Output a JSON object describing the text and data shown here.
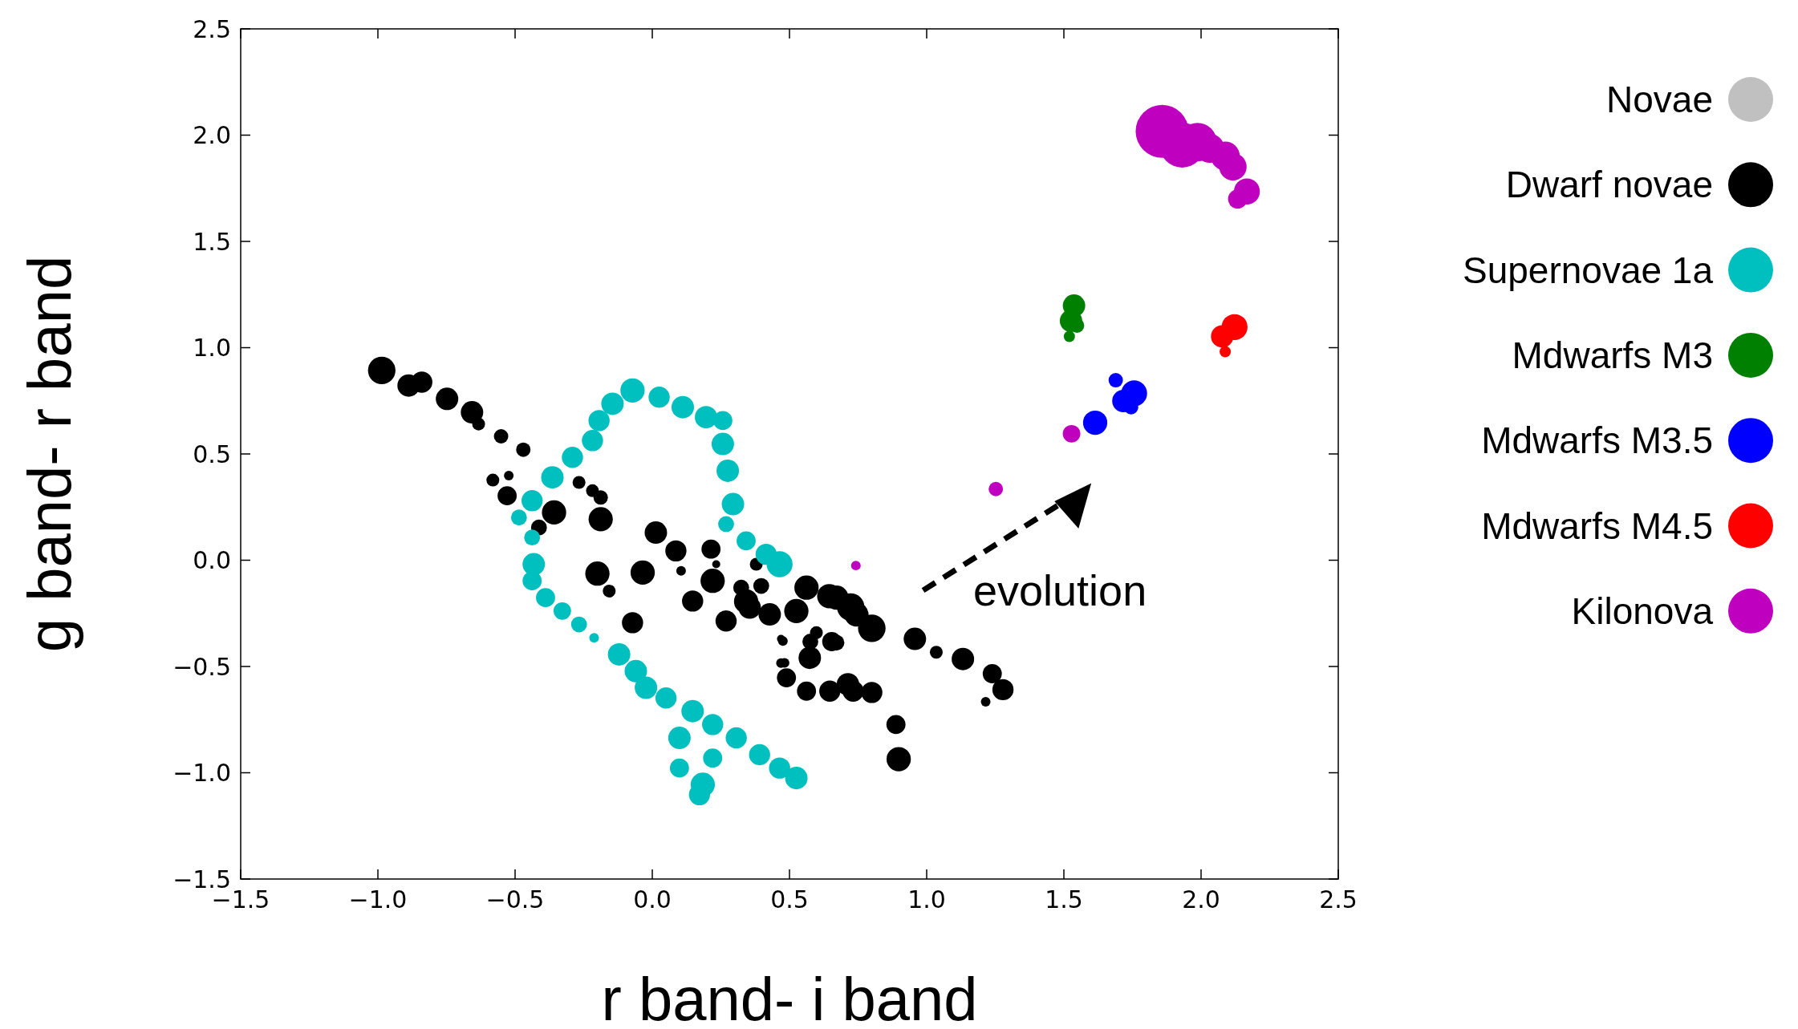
{
  "chart_data": {
    "type": "bubble",
    "xlabel": "r band- i band",
    "ylabel": "g band- r band",
    "xlim": [
      -1.5,
      2.5
    ],
    "ylim": [
      -1.5,
      2.5
    ],
    "xticks": [
      {
        "value": -1.5,
        "label": "−1.5"
      },
      {
        "value": -1.0,
        "label": "−1.0"
      },
      {
        "value": -0.5,
        "label": "−0.5"
      },
      {
        "value": 0,
        "label": "0.0"
      },
      {
        "value": 0.5,
        "label": "0.5"
      },
      {
        "value": 1.0,
        "label": "1.0"
      },
      {
        "value": 1.5,
        "label": "1.5"
      },
      {
        "value": 2.0,
        "label": "2.0"
      },
      {
        "value": 2.5,
        "label": "2.5"
      }
    ],
    "yticks": [
      {
        "value": -1.5,
        "label": "−1.5"
      },
      {
        "value": -1.0,
        "label": "−1.0"
      },
      {
        "value": -0.5,
        "label": "−0.5"
      },
      {
        "value": 0,
        "label": "0.0"
      },
      {
        "value": 0.5,
        "label": "0.5"
      },
      {
        "value": 1.0,
        "label": "1.0"
      },
      {
        "value": 1.5,
        "label": "1.5"
      },
      {
        "value": 2.0,
        "label": "2.0"
      },
      {
        "value": 2.5,
        "label": "2.5"
      }
    ],
    "grid": false,
    "legend": "right",
    "marker": "circle",
    "annotations": [
      "evolution"
    ],
    "series": [
      {
        "name": "Novae",
        "color": "#c0c0c0"
      },
      {
        "name": "Dwarf novae",
        "color": "#000000",
        "x": [
          -0.986,
          -0.888,
          -0.84,
          -0.748,
          -0.657,
          -0.633,
          -0.551,
          -0.47,
          -0.581,
          -0.523,
          -0.529,
          -0.413,
          -0.358,
          -0.267,
          -0.218,
          -0.188,
          -0.188,
          0.013,
          0.086,
          0.214,
          0.233,
          0.105,
          -0.2,
          -0.035,
          -0.157,
          -0.072,
          0.22,
          0.147,
          0.269,
          0.324,
          0.397,
          0.379,
          0.355,
          0.428,
          0.525,
          0.562,
          0.671,
          0.744,
          0.476,
          0.598,
          0.671,
          0.574,
          0.482,
          0.489,
          0.562,
          0.647,
          0.732,
          0.8,
          0.957,
          1.035,
          1.132,
          1.239,
          1.278,
          1.215,
          0.8,
          0.888,
          0.898,
          0.654,
          0.713,
          0.576,
          0.469,
          0.469,
          0.723,
          0.645,
          0.342
        ],
        "values": [
          0.893,
          0.822,
          0.838,
          0.759,
          0.696,
          0.641,
          0.583,
          0.52,
          0.377,
          0.398,
          0.303,
          0.154,
          0.225,
          0.366,
          0.327,
          0.295,
          0.193,
          0.13,
          0.044,
          0.052,
          -0.019,
          -0.05,
          -0.063,
          -0.058,
          -0.145,
          -0.294,
          -0.097,
          -0.192,
          -0.286,
          -0.129,
          -0.121,
          -0.019,
          -0.223,
          -0.255,
          -0.239,
          -0.129,
          -0.176,
          -0.255,
          -0.38,
          -0.341,
          -0.388,
          -0.459,
          -0.483,
          -0.553,
          -0.616,
          -0.616,
          -0.616,
          -0.32,
          -0.37,
          -0.433,
          -0.465,
          -0.534,
          -0.609,
          -0.666,
          -0.622,
          -0.773,
          -0.936,
          -0.383,
          -0.584,
          -0.383,
          -0.37,
          -0.484,
          -0.22,
          -0.169,
          -0.194
        ],
        "sizes": [
          0.27,
          0.18,
          0.16,
          0.18,
          0.18,
          0.059,
          0.074,
          0.074,
          0.059,
          0.033,
          0.13,
          0.09,
          0.21,
          0.059,
          0.059,
          0.074,
          0.21,
          0.18,
          0.16,
          0.13,
          0.023,
          0.033,
          0.21,
          0.21,
          0.059,
          0.16,
          0.21,
          0.16,
          0.16,
          0.09,
          0.09,
          0.059,
          0.18,
          0.18,
          0.21,
          0.21,
          0.21,
          0.21,
          0.033,
          0.059,
          0.09,
          0.18,
          0.033,
          0.13,
          0.13,
          0.16,
          0.16,
          0.27,
          0.18,
          0.059,
          0.18,
          0.13,
          0.16,
          0.033,
          0.16,
          0.13,
          0.21,
          0.13,
          0.18,
          0.09,
          0.023,
          0.033,
          0.27,
          0.21,
          0.21
        ]
      },
      {
        "name": "Supernovae 1a",
        "color": "#00bfbf",
        "x": [
          -0.486,
          -0.438,
          -0.364,
          -0.291,
          -0.218,
          -0.194,
          -0.145,
          -0.072,
          0.025,
          0.111,
          0.196,
          0.257,
          0.257,
          0.275,
          0.294,
          0.269,
          0.342,
          0.415,
          0.464,
          -0.438,
          -0.432,
          -0.438,
          -0.389,
          -0.328,
          -0.267,
          -0.212,
          -0.121,
          -0.06,
          -0.023,
          0.05,
          0.147,
          0.22,
          0.306,
          0.391,
          0.464,
          0.525,
          0.099,
          0.22,
          0.099,
          0.184,
          0.172
        ],
        "values": [
          0.201,
          0.28,
          0.39,
          0.484,
          0.563,
          0.657,
          0.736,
          0.799,
          0.767,
          0.72,
          0.673,
          0.657,
          0.547,
          0.421,
          0.264,
          0.17,
          0.091,
          0.028,
          -0.019,
          0.107,
          -0.019,
          -0.097,
          -0.176,
          -0.239,
          -0.302,
          -0.365,
          -0.443,
          -0.522,
          -0.6,
          -0.648,
          -0.71,
          -0.773,
          -0.836,
          -0.915,
          -0.978,
          -1.025,
          -0.836,
          -0.931,
          -0.978,
          -1.056,
          -1.103
        ],
        "sizes": [
          0.09,
          0.16,
          0.18,
          0.16,
          0.16,
          0.16,
          0.18,
          0.21,
          0.16,
          0.18,
          0.18,
          0.13,
          0.18,
          0.18,
          0.18,
          0.09,
          0.13,
          0.16,
          0.24,
          0.09,
          0.18,
          0.13,
          0.13,
          0.11,
          0.09,
          0.033,
          0.18,
          0.18,
          0.18,
          0.16,
          0.18,
          0.16,
          0.16,
          0.16,
          0.16,
          0.18,
          0.18,
          0.13,
          0.13,
          0.21,
          0.16
        ]
      },
      {
        "name": "Mdwarfs M3",
        "color": "#008000",
        "x": [
          1.537,
          1.526,
          1.548,
          1.52
        ],
        "values": [
          1.198,
          1.126,
          1.104,
          1.053
        ],
        "sizes": [
          0.18,
          0.18,
          0.074,
          0.045
        ]
      },
      {
        "name": "Mdwarfs M3.5",
        "color": "#0000ff",
        "x": [
          1.689,
          1.756,
          1.717,
          1.745,
          1.614
        ],
        "values": [
          0.847,
          0.785,
          0.749,
          0.72,
          0.647
        ],
        "sizes": [
          0.074,
          0.24,
          0.18,
          0.074,
          0.21
        ]
      },
      {
        "name": "Mdwarfs M4.5",
        "color": "#ff0000",
        "x": [
          2.122,
          2.077,
          2.088
        ],
        "values": [
          1.097,
          1.053,
          0.981
        ],
        "sizes": [
          0.24,
          0.18,
          0.045
        ]
      },
      {
        "name": "Kilonova",
        "color": "#bf00bf",
        "x": [
          1.858,
          1.931,
          1.987,
          2.032,
          2.088,
          2.116,
          2.167,
          2.133,
          1.528,
          1.252,
          0.742
        ],
        "values": [
          2.018,
          1.953,
          1.967,
          1.938,
          1.902,
          1.851,
          1.735,
          1.699,
          0.595,
          0.335,
          -0.025
        ],
        "sizes": [
          1,
          0.72,
          0.53,
          0.3,
          0.3,
          0.27,
          0.24,
          0.13,
          0.11,
          0.074,
          0.033
        ]
      }
    ]
  }
}
